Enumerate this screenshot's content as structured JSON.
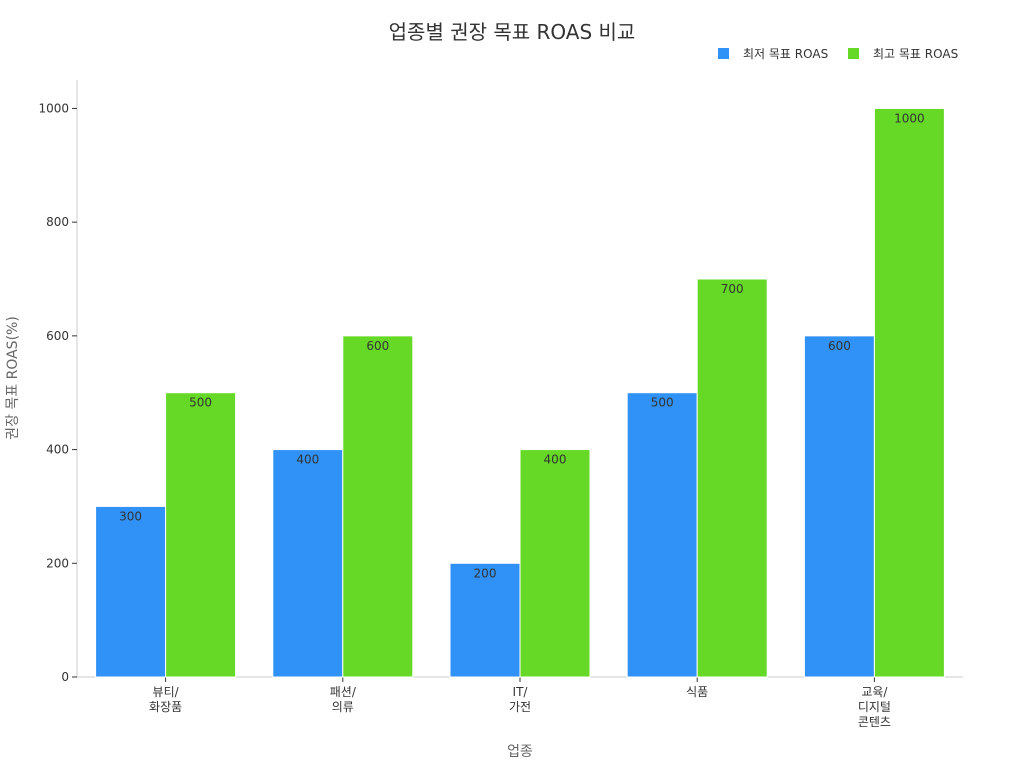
{
  "chart_data": {
    "type": "bar",
    "title": "업종별 권장 목표 ROAS 비교",
    "xlabel": "업종",
    "ylabel": "권장 목표 ROAS(%)",
    "categories": [
      "뷰티/\n화장품",
      "패션/\n의류",
      "IT/\n가전",
      "식품",
      "교육/\n디지털\n콘텐츠"
    ],
    "series": [
      {
        "name": "최저 목표 ROAS",
        "values": [
          300,
          400,
          200,
          500,
          600
        ],
        "color": "#3091f7"
      },
      {
        "name": "최고 목표 ROAS",
        "values": [
          500,
          600,
          400,
          700,
          1000
        ],
        "color": "#66d927"
      }
    ],
    "ylim": [
      0,
      1050
    ],
    "yticks": [
      0,
      200,
      400,
      600,
      800,
      1000
    ],
    "legend_position": "top-right",
    "grid": false
  }
}
